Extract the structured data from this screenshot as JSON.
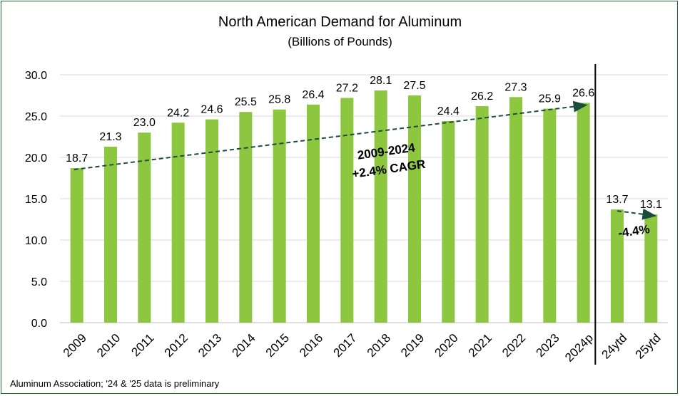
{
  "chart_data": {
    "type": "bar",
    "title": "North American Demand for Aluminum",
    "subtitle": "(Billions of Pounds)",
    "source": "Aluminum Association; '24 & '25 data is preliminary",
    "categories": [
      "2009",
      "2010",
      "2011",
      "2012",
      "2013",
      "2014",
      "2015",
      "2016",
      "2017",
      "2018",
      "2019",
      "2020",
      "2021",
      "2022",
      "2023",
      "2024p",
      "24ytd",
      "25ytd"
    ],
    "values": [
      18.7,
      21.3,
      23.0,
      24.2,
      24.6,
      25.5,
      25.8,
      26.4,
      27.2,
      28.1,
      27.5,
      24.4,
      26.2,
      27.3,
      25.9,
      26.6,
      13.7,
      13.1
    ],
    "value_labels": [
      "18.7",
      "21.3",
      "23.0",
      "24.2",
      "24.6",
      "25.5",
      "25.8",
      "26.4",
      "27.2",
      "28.1",
      "27.5",
      "24.4",
      "26.2",
      "27.3",
      "25.9",
      "26.6",
      "13.7",
      "13.1"
    ],
    "ylim": [
      0,
      30
    ],
    "yticks": [
      "0.0",
      "5.0",
      "10.0",
      "15.0",
      "20.0",
      "25.0",
      "30.0"
    ],
    "grid": true,
    "bar_color": "#8dc63f",
    "trend_color": "#1b4d3e",
    "annotations": [
      {
        "line1": "2009-2024",
        "line2": "+2.4% CAGR"
      },
      {
        "line1": "-4.4%"
      }
    ]
  }
}
